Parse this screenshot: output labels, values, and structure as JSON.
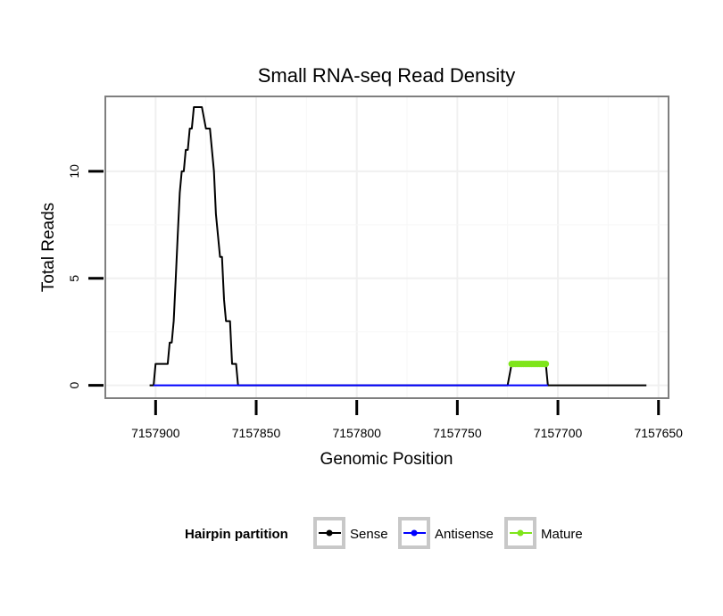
{
  "chart_data": {
    "type": "line",
    "title": "Small RNA-seq Read Density",
    "xlabel": "Genomic Position",
    "ylabel": "Total Reads",
    "x_reversed": true,
    "xlim": [
      7157925,
      7157645
    ],
    "ylim": [
      -0.6,
      13.5
    ],
    "x_ticks": [
      7157900,
      7157850,
      7157800,
      7157750,
      7157700,
      7157650
    ],
    "x_tick_labels": [
      "7157900",
      "7157850",
      "7157800",
      "7157750",
      "7157700",
      "7157650"
    ],
    "y_ticks": [
      0,
      5,
      10
    ],
    "y_tick_labels": [
      "0",
      "5",
      "10"
    ],
    "grid": true,
    "legend": {
      "title": "Hairpin partition",
      "position": "bottom",
      "entries": [
        {
          "name": "Sense",
          "color": "#000000"
        },
        {
          "name": "Antisense",
          "color": "#0000ff"
        },
        {
          "name": "Mature",
          "color": "#7fe51a"
        }
      ]
    },
    "series": [
      {
        "name": "Sense",
        "color": "#000000",
        "x": [
          7157903,
          7157901,
          7157900,
          7157899,
          7157897,
          7157894,
          7157893,
          7157892,
          7157891,
          7157890,
          7157889,
          7157888,
          7157887,
          7157886,
          7157885,
          7157884,
          7157883,
          7157882,
          7157881,
          7157879,
          7157878,
          7157877,
          7157875,
          7157874,
          7157873,
          7157871,
          7157870,
          7157869,
          7157868,
          7157867,
          7157866,
          7157865,
          7157863,
          7157862,
          7157861,
          7157860,
          7157859,
          7157858,
          7157857,
          7157855,
          7157726,
          7157725,
          7157723,
          7157706,
          7157705,
          7157704,
          7157656
        ],
        "values": [
          0,
          0,
          1,
          1,
          1,
          1,
          2,
          2,
          3,
          5,
          7,
          9,
          10,
          10,
          11,
          11,
          12,
          12,
          13,
          13,
          13,
          13,
          12,
          12,
          12,
          10,
          8,
          7,
          6,
          6,
          4,
          3,
          3,
          1,
          1,
          1,
          0,
          0,
          0,
          0,
          0,
          0,
          1,
          1,
          0,
          0,
          0
        ]
      },
      {
        "name": "Antisense",
        "color": "#0000ff",
        "x": [
          7157901,
          7157858,
          7157723,
          7157705
        ],
        "values": [
          0,
          0,
          0,
          0
        ]
      },
      {
        "name": "Mature",
        "color": "#7fe51a",
        "x": [
          7157723,
          7157722,
          7157721,
          7157720,
          7157719,
          7157718,
          7157717,
          7157716,
          7157715,
          7157714,
          7157713,
          7157712,
          7157711,
          7157710,
          7157709,
          7157708,
          7157707,
          7157706
        ],
        "values": [
          1,
          1,
          1,
          1,
          1,
          1,
          1,
          1,
          1,
          1,
          1,
          1,
          1,
          1,
          1,
          1,
          1,
          1
        ]
      }
    ]
  }
}
